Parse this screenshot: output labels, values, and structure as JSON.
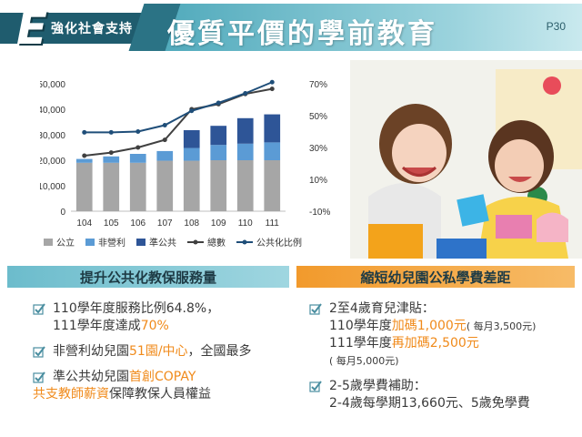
{
  "header": {
    "section_tag": "強化社會支持",
    "title": "優質平價的學前教育",
    "page": "P30"
  },
  "chart_data": {
    "type": "bar",
    "stacked": true,
    "categories": [
      "104",
      "105",
      "106",
      "107",
      "108",
      "109",
      "110",
      "111"
    ],
    "y_left": {
      "min": 0,
      "max": 50000,
      "ticks": [
        "0",
        "10,000",
        "20,000",
        "30,000",
        "40,000",
        "50,000"
      ]
    },
    "y_right": {
      "min": -10,
      "max": 70,
      "ticks": [
        "-10%",
        "10%",
        "30%",
        "50%",
        "70%"
      ]
    },
    "series": [
      {
        "name": "公立",
        "kind": "bar",
        "color": "#a6a6a6",
        "values": [
          19000,
          19000,
          19000,
          19800,
          19800,
          20000,
          20000,
          20000
        ]
      },
      {
        "name": "非營利",
        "kind": "bar",
        "color": "#5b9bd5",
        "values": [
          1500,
          2500,
          3500,
          3800,
          5000,
          6000,
          6500,
          7000
        ]
      },
      {
        "name": "準公共",
        "kind": "bar",
        "color": "#2e5597",
        "values": [
          0,
          0,
          0,
          0,
          7000,
          7500,
          10000,
          11000
        ]
      },
      {
        "name": "總數",
        "kind": "line",
        "axis": "left",
        "color": "#404040",
        "values": [
          21800,
          23000,
          25000,
          28000,
          40000,
          42000,
          46000,
          48000
        ]
      },
      {
        "name": "公共化比例",
        "kind": "line",
        "axis": "right",
        "color": "#1f4e79",
        "values": [
          39.5,
          39.5,
          40,
          44,
          53,
          58,
          64,
          71
        ]
      }
    ],
    "legend": "bottom"
  },
  "left_panel": {
    "heading": "提升公共化教保服務量",
    "items": [
      {
        "line1": "110學年度服務比例64.8%，",
        "line2_pre": "111學年度達成",
        "line2_hl": "70%"
      },
      {
        "pre": "非營利幼兒園",
        "hl": "51園/中心",
        "post": "，全國最多"
      },
      {
        "line1_pre": "準公共幼兒園",
        "line1_hl": "首創COPAY",
        "line2_hl": "共支教師薪資",
        "line2_post": "保障教保人員權益"
      }
    ]
  },
  "right_panel": {
    "heading": "縮短幼兒園公私學費差距",
    "items": [
      {
        "line1": "2至4歲育兒津貼：",
        "line2_pre": "110學年度",
        "line2_hl": "加碼1,000元",
        "line2_small": "( 每月3,500元)",
        "line3_pre": "111學年度",
        "line3_hl": "再加碼2,500元",
        "line4_small": "( 每月5,000元)"
      },
      {
        "line1": "2-5歲學費補助：",
        "line2": "2-4歲每學期13,660元、5歲免學費"
      }
    ]
  }
}
